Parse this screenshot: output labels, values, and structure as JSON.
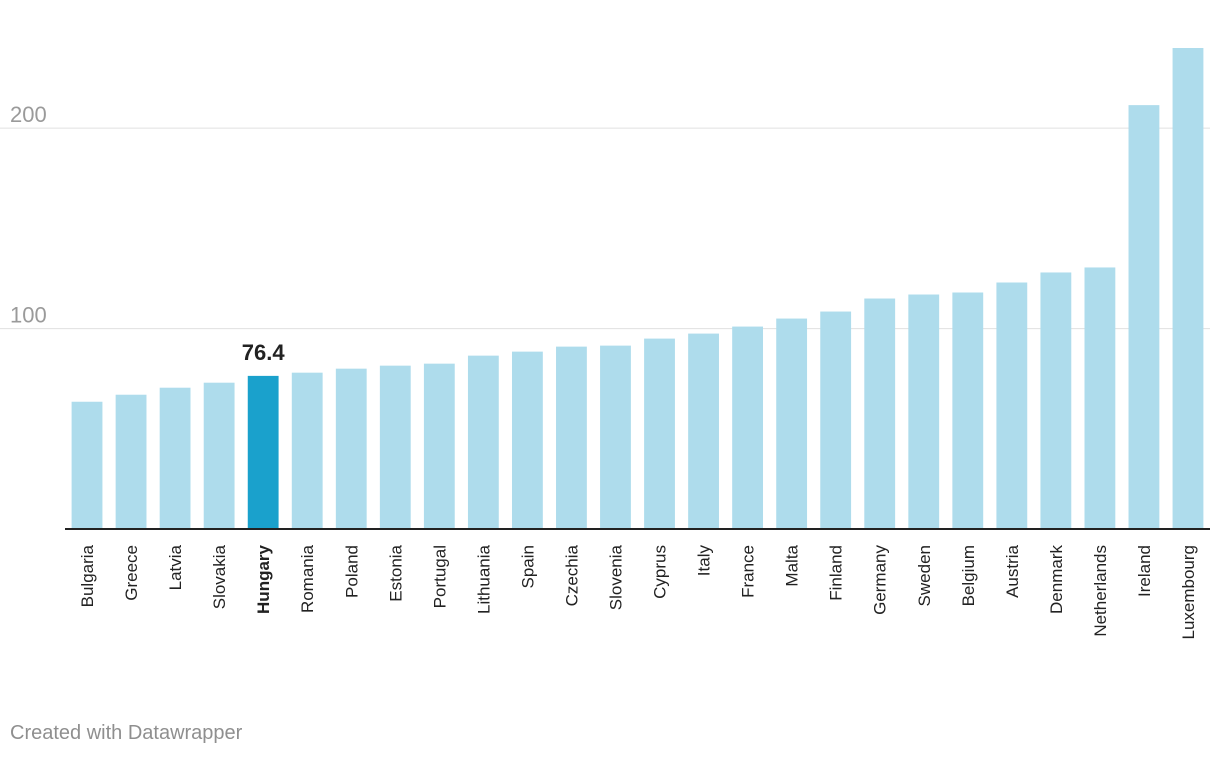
{
  "chart_data": {
    "type": "bar",
    "categories": [
      "Bulgaria",
      "Greece",
      "Latvia",
      "Slovakia",
      "Hungary",
      "Romania",
      "Poland",
      "Estonia",
      "Portugal",
      "Lithuania",
      "Spain",
      "Czechia",
      "Slovenia",
      "Cyprus",
      "Italy",
      "France",
      "Malta",
      "Finland",
      "Germany",
      "Sweden",
      "Belgium",
      "Austria",
      "Denmark",
      "Netherlands",
      "Ireland",
      "Luxembourg"
    ],
    "values": [
      63.5,
      67,
      70.5,
      73,
      76.4,
      78,
      80,
      81.5,
      82.5,
      86.5,
      88.5,
      91,
      91.5,
      95,
      97.5,
      101,
      105,
      108.5,
      115,
      117,
      118,
      123,
      128,
      130.5,
      211.5,
      240
    ],
    "title": "",
    "xlabel": "",
    "ylabel": "",
    "ylim": [
      0,
      240
    ],
    "yticks": [
      "100",
      "200"
    ],
    "grid": true,
    "highlight": {
      "category": "Hungary",
      "label": "76.4",
      "color": "#1aa1cc"
    },
    "bar_color": "#aedcec"
  },
  "footer": {
    "credit": "Created with Datawrapper"
  }
}
